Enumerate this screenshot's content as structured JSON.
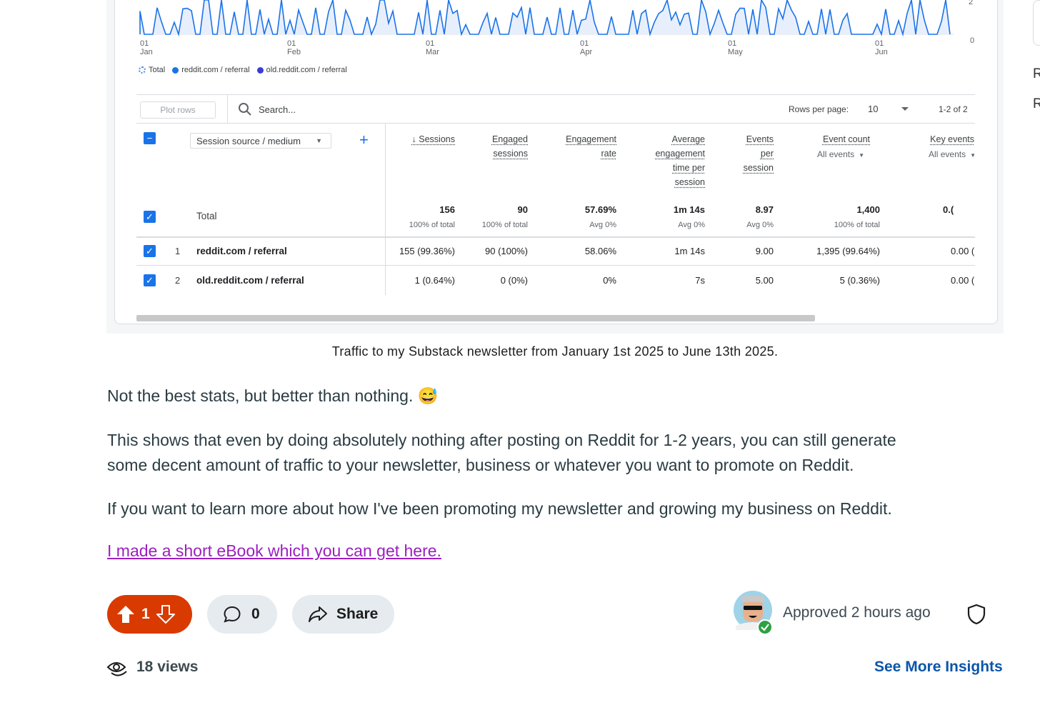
{
  "chart": {
    "x_ticks": [
      {
        "day": "01",
        "month": "Jan"
      },
      {
        "day": "01",
        "month": "Feb"
      },
      {
        "day": "01",
        "month": "Mar"
      },
      {
        "day": "01",
        "month": "Apr"
      },
      {
        "day": "01",
        "month": "May"
      },
      {
        "day": "01",
        "month": "Jun"
      }
    ],
    "y_ticks": [
      "2",
      "0"
    ],
    "legend": [
      "Total",
      "reddit.com / referral",
      "old.reddit.com / referral"
    ],
    "colors": {
      "total": "#4285f4",
      "reddit": "#1a73e8",
      "old_reddit": "#3b3bd6"
    }
  },
  "table": {
    "plot_rows": "Plot rows",
    "search_placeholder": "Search...",
    "rows_per_page_label": "Rows per page:",
    "rows_per_page_value": "10",
    "pagination": "1-2 of 2",
    "dimension": "Session source / medium",
    "add_icon": "+",
    "columns": [
      {
        "lines": [
          "↓ Sessions"
        ]
      },
      {
        "lines": [
          "Engaged",
          "sessions"
        ]
      },
      {
        "lines": [
          "Engagement",
          "rate"
        ]
      },
      {
        "lines": [
          "Average",
          "engagement",
          "time per",
          "session"
        ]
      },
      {
        "lines": [
          "Events",
          "per",
          "session"
        ]
      },
      {
        "lines": [
          "Event count"
        ],
        "sub": "All events"
      },
      {
        "lines": [
          "Key events"
        ],
        "sub": "All events"
      }
    ],
    "total": {
      "label": "Total",
      "values": [
        "156",
        "90",
        "57.69%",
        "1m 14s",
        "8.97",
        "1,400",
        "0.("
      ],
      "subs": [
        "100% of total",
        "100% of total",
        "Avg 0%",
        "Avg 0%",
        "Avg 0%",
        "100% of total",
        ""
      ]
    },
    "rows": [
      {
        "index": "1",
        "label": "reddit.com / referral",
        "values": [
          "155 (99.36%)",
          "90 (100%)",
          "58.06%",
          "1m 14s",
          "9.00",
          "1,395 (99.64%)",
          "0.00 ("
        ]
      },
      {
        "index": "2",
        "label": "old.reddit.com / referral",
        "values": [
          "1 (0.64%)",
          "0 (0%)",
          "0%",
          "7s",
          "5.00",
          "5 (0.36%)",
          "0.00 ("
        ]
      }
    ]
  },
  "caption": "Traffic to my Substack newsletter from January 1st 2025 to June 13th 2025.",
  "post": {
    "p1": "Not the best stats, but better than nothing. 😅",
    "p2_line1": "This shows that even by doing absolutely nothing after posting on Reddit for 1-2 years, you can still generate",
    "p2_line2": "some decent amount of traffic to your newsletter, business or whatever you want to promote on Reddit.",
    "p3": "If you want to learn more about how I've been promoting my newsletter and growing my business on Reddit.",
    "link": "I made a short eBook which you can get here."
  },
  "actions": {
    "vote_count": "1",
    "comment_count": "0",
    "share_label": "Share",
    "approved": "Approved 2 hours ago",
    "views": "18 views",
    "insights": "See More Insights"
  },
  "edge": [
    "R",
    "R"
  ]
}
